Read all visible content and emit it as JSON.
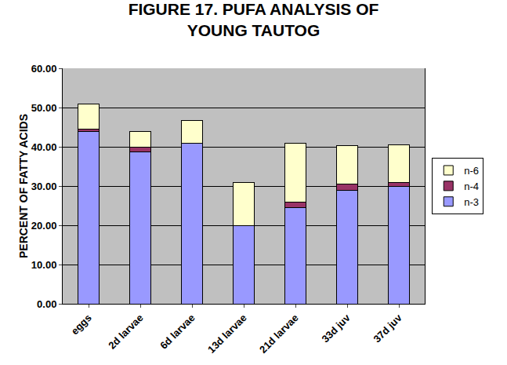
{
  "chart_data": {
    "type": "bar",
    "title": "FIGURE 17. PUFA ANALYSIS OF\nYOUNG TAUTOG",
    "y_label": "PERCENT OF FATTY ACIDS",
    "categories": [
      "eggs",
      "2d larvae",
      "6d larvae",
      "13d larvae",
      "21d larvae",
      "33d juv",
      "37d juv"
    ],
    "series": [
      {
        "name": "n-3",
        "color": "#9999FF",
        "values": [
          44,
          38.7,
          41,
          20,
          24.5,
          29,
          30
        ]
      },
      {
        "name": "n-4",
        "color": "#993366",
        "values": [
          0.5,
          1.3,
          0,
          0,
          1.5,
          1.5,
          1
        ]
      },
      {
        "name": "n-6",
        "color": "#FFFFCC",
        "values": [
          6.5,
          4,
          5.8,
          11,
          15,
          9.8,
          9.6
        ]
      }
    ],
    "stacked": true,
    "ylim": [
      0,
      60
    ],
    "yticks": [
      {
        "value": 0,
        "label": "0.00"
      },
      {
        "value": 10,
        "label": "10.00"
      },
      {
        "value": 20,
        "label": "20.00"
      },
      {
        "value": 30,
        "label": "30.00"
      },
      {
        "value": 40,
        "label": "40.00"
      },
      {
        "value": 50,
        "label": "50.00"
      },
      {
        "value": 60,
        "label": "60.00"
      }
    ],
    "grid": true,
    "legend": "right"
  }
}
